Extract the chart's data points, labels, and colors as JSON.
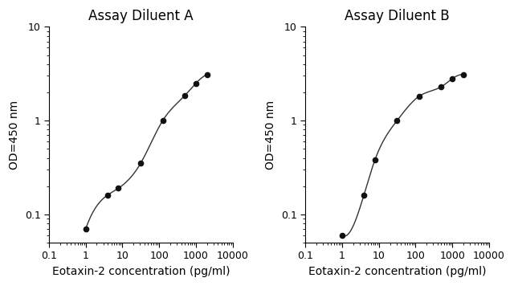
{
  "title_A": "Assay Diluent A",
  "title_B": "Assay Diluent B",
  "xlabel": "Eotaxin-2 concentration (pg/ml)",
  "ylabel": "OD=450 nm",
  "xlim": [
    0.1,
    10000
  ],
  "ylim": [
    0.05,
    10
  ],
  "x_A": [
    1,
    3.9,
    7.8,
    31.25,
    125,
    500,
    1000,
    2000
  ],
  "y_A": [
    0.07,
    0.16,
    0.19,
    0.35,
    1.0,
    1.85,
    2.5,
    3.1
  ],
  "x_B": [
    1,
    3.9,
    7.8,
    31.25,
    125,
    500,
    1000,
    2000
  ],
  "y_B": [
    0.06,
    0.16,
    0.38,
    1.0,
    1.82,
    2.3,
    2.8,
    3.1
  ],
  "line_color": "#333333",
  "marker_color": "#111111",
  "bg_color": "#ffffff",
  "title_fontsize": 12,
  "label_fontsize": 10,
  "tick_fontsize": 9
}
